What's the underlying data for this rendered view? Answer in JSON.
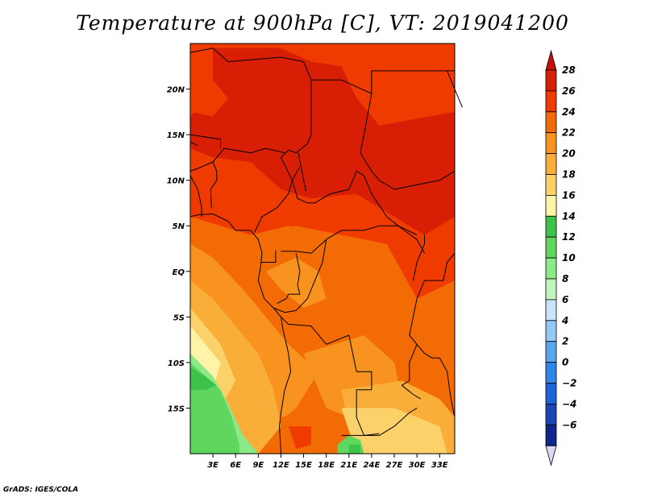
{
  "title": "Temperature at 900hPa [C], VT: 2019041200",
  "credit": "GrADS: IGES/COLA",
  "map": {
    "lon_range": [
      0,
      35
    ],
    "lat_range": [
      -20,
      25
    ],
    "lat_ticks": [
      {
        "lat": 20,
        "label": "20N"
      },
      {
        "lat": 15,
        "label": "15N"
      },
      {
        "lat": 10,
        "label": "10N"
      },
      {
        "lat": 5,
        "label": "5N"
      },
      {
        "lat": 0,
        "label": "EQ"
      },
      {
        "lat": -5,
        "label": "5S"
      },
      {
        "lat": -10,
        "label": "10S"
      },
      {
        "lat": -15,
        "label": "15S"
      }
    ],
    "lon_ticks": [
      {
        "lon": 3,
        "label": "3E"
      },
      {
        "lon": 6,
        "label": "6E"
      },
      {
        "lon": 9,
        "label": "9E"
      },
      {
        "lon": 12,
        "label": "12E"
      },
      {
        "lon": 15,
        "label": "15E"
      },
      {
        "lon": 18,
        "label": "18E"
      },
      {
        "lon": 21,
        "label": "21E"
      },
      {
        "lon": 24,
        "label": "24E"
      },
      {
        "lon": 27,
        "label": "27E"
      },
      {
        "lon": 30,
        "label": "30E"
      },
      {
        "lon": 33,
        "label": "33E"
      }
    ]
  },
  "colorbar": {
    "levels": [
      {
        "label": "28",
        "color": "#d81e05"
      },
      {
        "label": "26",
        "color": "#ef3b00"
      },
      {
        "label": "24",
        "color": "#f36b05"
      },
      {
        "label": "22",
        "color": "#f7931e"
      },
      {
        "label": "20",
        "color": "#f9ae3a"
      },
      {
        "label": "18",
        "color": "#fbd26a"
      },
      {
        "label": "16",
        "color": "#fff3a8"
      },
      {
        "label": "14",
        "color": "#3ec34a"
      },
      {
        "label": "12",
        "color": "#5fd75e"
      },
      {
        "label": "10",
        "color": "#8be987"
      },
      {
        "label": "8",
        "color": "#c2f5bd"
      },
      {
        "label": "6",
        "color": "#c7e4fb"
      },
      {
        "label": "4",
        "color": "#94c8f6"
      },
      {
        "label": "2",
        "color": "#5aa6ee"
      },
      {
        "label": "0",
        "color": "#2f86e6"
      },
      {
        "label": "−2",
        "color": "#1d63d6"
      },
      {
        "label": "−4",
        "color": "#1a47b4"
      },
      {
        "label": "−6",
        "color": "#0f268c"
      }
    ],
    "top_color": "#c41205",
    "bottom_color": "#dad8f5"
  },
  "field_colors": {
    "hot": "#d81e05",
    "c26": "#ef3b00",
    "c24": "#f36b05",
    "c22": "#f7931e",
    "c20": "#f9ae3a",
    "c18": "#fbd26a",
    "c16": "#fff3a8",
    "g14": "#3ec34a",
    "g12": "#5fd75e",
    "g10": "#8be987"
  }
}
